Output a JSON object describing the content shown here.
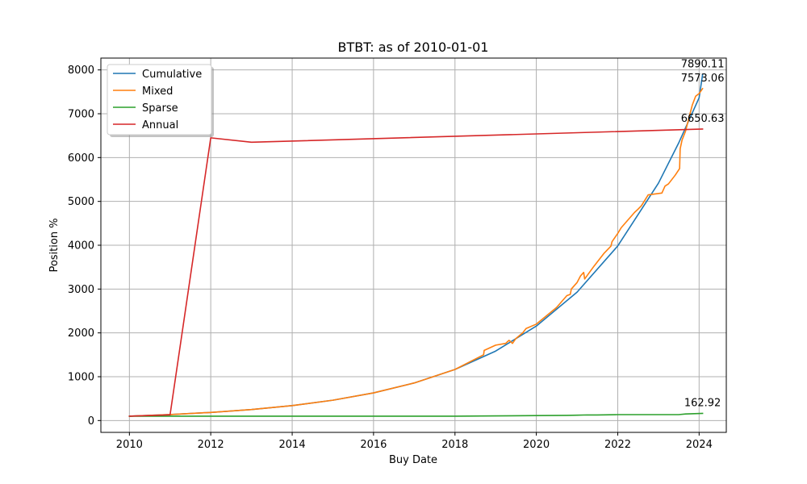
{
  "chart_data": {
    "type": "line",
    "title": "BTBT: as of 2010-01-01",
    "xlabel": "Buy Date",
    "ylabel": "Position %",
    "xlim": [
      "2009-04-20",
      "2024-09-01"
    ],
    "ylim": [
      -270,
      8270
    ],
    "x_ticks": [
      {
        "date": "2010-01-01",
        "label": "2010"
      },
      {
        "date": "2012-01-01",
        "label": "2012"
      },
      {
        "date": "2014-01-01",
        "label": "2014"
      },
      {
        "date": "2016-01-01",
        "label": "2016"
      },
      {
        "date": "2018-01-01",
        "label": "2018"
      },
      {
        "date": "2020-01-01",
        "label": "2020"
      },
      {
        "date": "2022-01-01",
        "label": "2022"
      },
      {
        "date": "2024-01-01",
        "label": "2024"
      }
    ],
    "y_ticks": [
      0,
      1000,
      2000,
      3000,
      4000,
      5000,
      6000,
      7000,
      8000
    ],
    "grid": true,
    "legend_position": "top-left",
    "series": [
      {
        "name": "Cumulative",
        "color": "#1f77b4",
        "points": [
          [
            "2010-01-01",
            100
          ],
          [
            "2011-01-01",
            136
          ],
          [
            "2012-01-01",
            185
          ],
          [
            "2013-01-01",
            251
          ],
          [
            "2014-01-01",
            341
          ],
          [
            "2015-01-01",
            464
          ],
          [
            "2016-01-01",
            631
          ],
          [
            "2017-01-01",
            858
          ],
          [
            "2018-01-01",
            1166
          ],
          [
            "2019-01-01",
            1585
          ],
          [
            "2020-01-01",
            2155
          ],
          [
            "2021-01-01",
            2930
          ],
          [
            "2022-01-01",
            3984
          ],
          [
            "2023-01-01",
            5416
          ],
          [
            "2023-07-01",
            6330
          ],
          [
            "2024-01-01",
            7364
          ],
          [
            "2024-02-01",
            7890.11
          ]
        ]
      },
      {
        "name": "Mixed",
        "color": "#ff7f0e",
        "points": [
          [
            "2010-01-01",
            100
          ],
          [
            "2011-01-01",
            136
          ],
          [
            "2012-01-01",
            185
          ],
          [
            "2013-01-01",
            251
          ],
          [
            "2014-01-01",
            341
          ],
          [
            "2015-01-01",
            464
          ],
          [
            "2016-01-01",
            631
          ],
          [
            "2017-01-01",
            858
          ],
          [
            "2018-01-01",
            1166
          ],
          [
            "2018-09-15",
            1500
          ],
          [
            "2018-09-20",
            1600
          ],
          [
            "2019-01-01",
            1720
          ],
          [
            "2019-04-01",
            1760
          ],
          [
            "2019-05-01",
            1830
          ],
          [
            "2019-06-01",
            1760
          ],
          [
            "2019-07-01",
            1870
          ],
          [
            "2019-09-01",
            2000
          ],
          [
            "2019-10-01",
            2100
          ],
          [
            "2020-01-01",
            2200
          ],
          [
            "2020-07-01",
            2580
          ],
          [
            "2020-10-01",
            2850
          ],
          [
            "2020-11-01",
            2880
          ],
          [
            "2020-11-10",
            3000
          ],
          [
            "2021-01-01",
            3150
          ],
          [
            "2021-02-01",
            3300
          ],
          [
            "2021-03-01",
            3380
          ],
          [
            "2021-03-10",
            3230
          ],
          [
            "2021-06-01",
            3520
          ],
          [
            "2021-09-01",
            3820
          ],
          [
            "2021-11-01",
            3980
          ],
          [
            "2021-11-10",
            4080
          ],
          [
            "2022-01-01",
            4270
          ],
          [
            "2022-02-01",
            4400
          ],
          [
            "2022-06-01",
            4750
          ],
          [
            "2022-07-01",
            4820
          ],
          [
            "2022-08-01",
            4900
          ],
          [
            "2022-10-01",
            5150
          ],
          [
            "2023-02-01",
            5190
          ],
          [
            "2023-03-01",
            5350
          ],
          [
            "2023-04-01",
            5400
          ],
          [
            "2023-06-01",
            5600
          ],
          [
            "2023-07-10",
            5750
          ],
          [
            "2023-07-15",
            6200
          ],
          [
            "2023-08-01",
            6400
          ],
          [
            "2023-09-01",
            6600
          ],
          [
            "2023-10-01",
            6900
          ],
          [
            "2023-11-01",
            7200
          ],
          [
            "2023-12-01",
            7400
          ],
          [
            "2024-01-01",
            7460
          ],
          [
            "2024-02-01",
            7573.06
          ]
        ]
      },
      {
        "name": "Sparse",
        "color": "#2ca02c",
        "points": [
          [
            "2010-01-01",
            100
          ],
          [
            "2011-01-01",
            100
          ],
          [
            "2014-01-01",
            100
          ],
          [
            "2018-01-01",
            100
          ],
          [
            "2018-09-01",
            103
          ],
          [
            "2019-06-01",
            108
          ],
          [
            "2020-01-01",
            113
          ],
          [
            "2020-10-01",
            118
          ],
          [
            "2021-01-01",
            123
          ],
          [
            "2021-04-01",
            128
          ],
          [
            "2021-07-01",
            126
          ],
          [
            "2022-01-01",
            135
          ],
          [
            "2023-01-01",
            135
          ],
          [
            "2023-07-01",
            135
          ],
          [
            "2023-09-01",
            150
          ],
          [
            "2024-02-01",
            162.92
          ]
        ]
      },
      {
        "name": "Annual",
        "color": "#d62728",
        "points": [
          [
            "2010-01-01",
            100
          ],
          [
            "2011-01-01",
            130
          ],
          [
            "2012-01-01",
            6450
          ],
          [
            "2013-01-01",
            6350
          ],
          [
            "2024-02-01",
            6650.63
          ]
        ]
      }
    ],
    "annotations": [
      {
        "date": "2024-02-01",
        "value": 7890.11,
        "text": "7890.11"
      },
      {
        "date": "2024-02-01",
        "value": 7573.06,
        "text": "7573.06"
      },
      {
        "date": "2024-02-01",
        "value": 6650.63,
        "text": "6650.63"
      },
      {
        "date": "2024-02-01",
        "value": 162.92,
        "text": "162.92"
      }
    ]
  }
}
